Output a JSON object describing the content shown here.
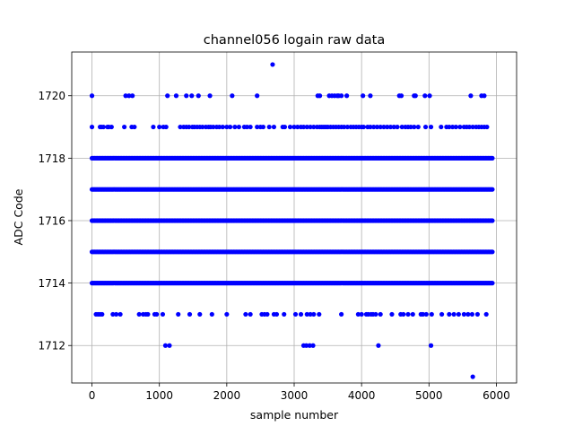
{
  "chart_data": {
    "type": "scatter",
    "title": "channel056 logain raw data",
    "xlabel": "sample number",
    "ylabel": "ADC Code",
    "xlim": [
      -300,
      6300
    ],
    "ylim": [
      1710.8,
      1721.4
    ],
    "x_ticks": [
      0,
      1000,
      2000,
      3000,
      4000,
      5000,
      6000
    ],
    "y_ticks": [
      1712,
      1714,
      1716,
      1718,
      1720
    ],
    "x_tick_labels": [
      "0",
      "1000",
      "2000",
      "3000",
      "4000",
      "5000",
      "6000"
    ],
    "y_tick_labels": [
      "1712",
      "1714",
      "1716",
      "1718",
      "1720"
    ],
    "grid": true,
    "marker_color": "#0000ff",
    "series": [
      {
        "levels": [
          {
            "y": 1721,
            "x": [
              2680
            ]
          },
          {
            "y": 1720,
            "x": [
              0,
              500,
              550,
              600,
              1120,
              1250,
              1400,
              1480,
              1580,
              1750,
              2080,
              2450,
              3350,
              3380,
              3520,
              3560,
              3600,
              3640,
              3660,
              3700,
              3780,
              4020,
              4130,
              4560,
              4590,
              4780,
              4800,
              4940,
              5010,
              5620,
              5780,
              5820
            ]
          },
          {
            "y": 1719,
            "x": [
              0,
              120,
              140,
              170,
              230,
              250,
              290,
              480,
              590,
              630,
              910,
              1000,
              1060,
              1100,
              1310,
              1360,
              1400,
              1440,
              1490,
              1520,
              1560,
              1600,
              1640,
              1690,
              1730,
              1760,
              1800,
              1850,
              1890,
              1940,
              2000,
              2050,
              2120,
              2180,
              2260,
              2300,
              2350,
              2450,
              2500,
              2540,
              2630,
              2700,
              2830,
              2860,
              2940,
              3000,
              3050,
              3100,
              3140,
              3190,
              3240,
              3290,
              3340,
              3380,
              3410,
              3440,
              3470,
              3500,
              3540,
              3580,
              3620,
              3660,
              3700,
              3740,
              3790,
              3840,
              3880,
              3920,
              3960,
              4000,
              4030,
              4090,
              4130,
              4180,
              4230,
              4280,
              4330,
              4380,
              4430,
              4480,
              4530,
              4600,
              4650,
              4690,
              4730,
              4780,
              4840,
              4950,
              5030,
              5180,
              5260,
              5300,
              5350,
              5400,
              5460,
              5520,
              5560,
              5600,
              5650,
              5700,
              5740,
              5780,
              5820,
              5860
            ]
          },
          {
            "y": 1713,
            "x": [
              60,
              90,
              120,
              150,
              310,
              360,
              420,
              700,
              760,
              800,
              830,
              930,
              960,
              1050,
              1280,
              1450,
              1600,
              1780,
              2000,
              2280,
              2350,
              2520,
              2560,
              2600,
              2700,
              2740,
              2850,
              3020,
              3100,
              3190,
              3240,
              3290,
              3370,
              3700,
              3950,
              4000,
              4070,
              4100,
              4140,
              4170,
              4210,
              4280,
              4450,
              4580,
              4620,
              4690,
              4760,
              4880,
              4910,
              4960,
              5040,
              5190,
              5300,
              5370,
              5440,
              5520,
              5580,
              5640,
              5720,
              5850
            ]
          },
          {
            "y": 1712,
            "x": [
              1090,
              1150,
              3140,
              3180,
              3230,
              3280,
              4250,
              5030
            ]
          },
          {
            "y": 1711,
            "x": [
              5650
            ]
          }
        ],
        "dense_levels": [
          1714,
          1715,
          1716,
          1717,
          1718
        ],
        "dense_x_range": [
          0,
          5940
        ]
      }
    ]
  }
}
